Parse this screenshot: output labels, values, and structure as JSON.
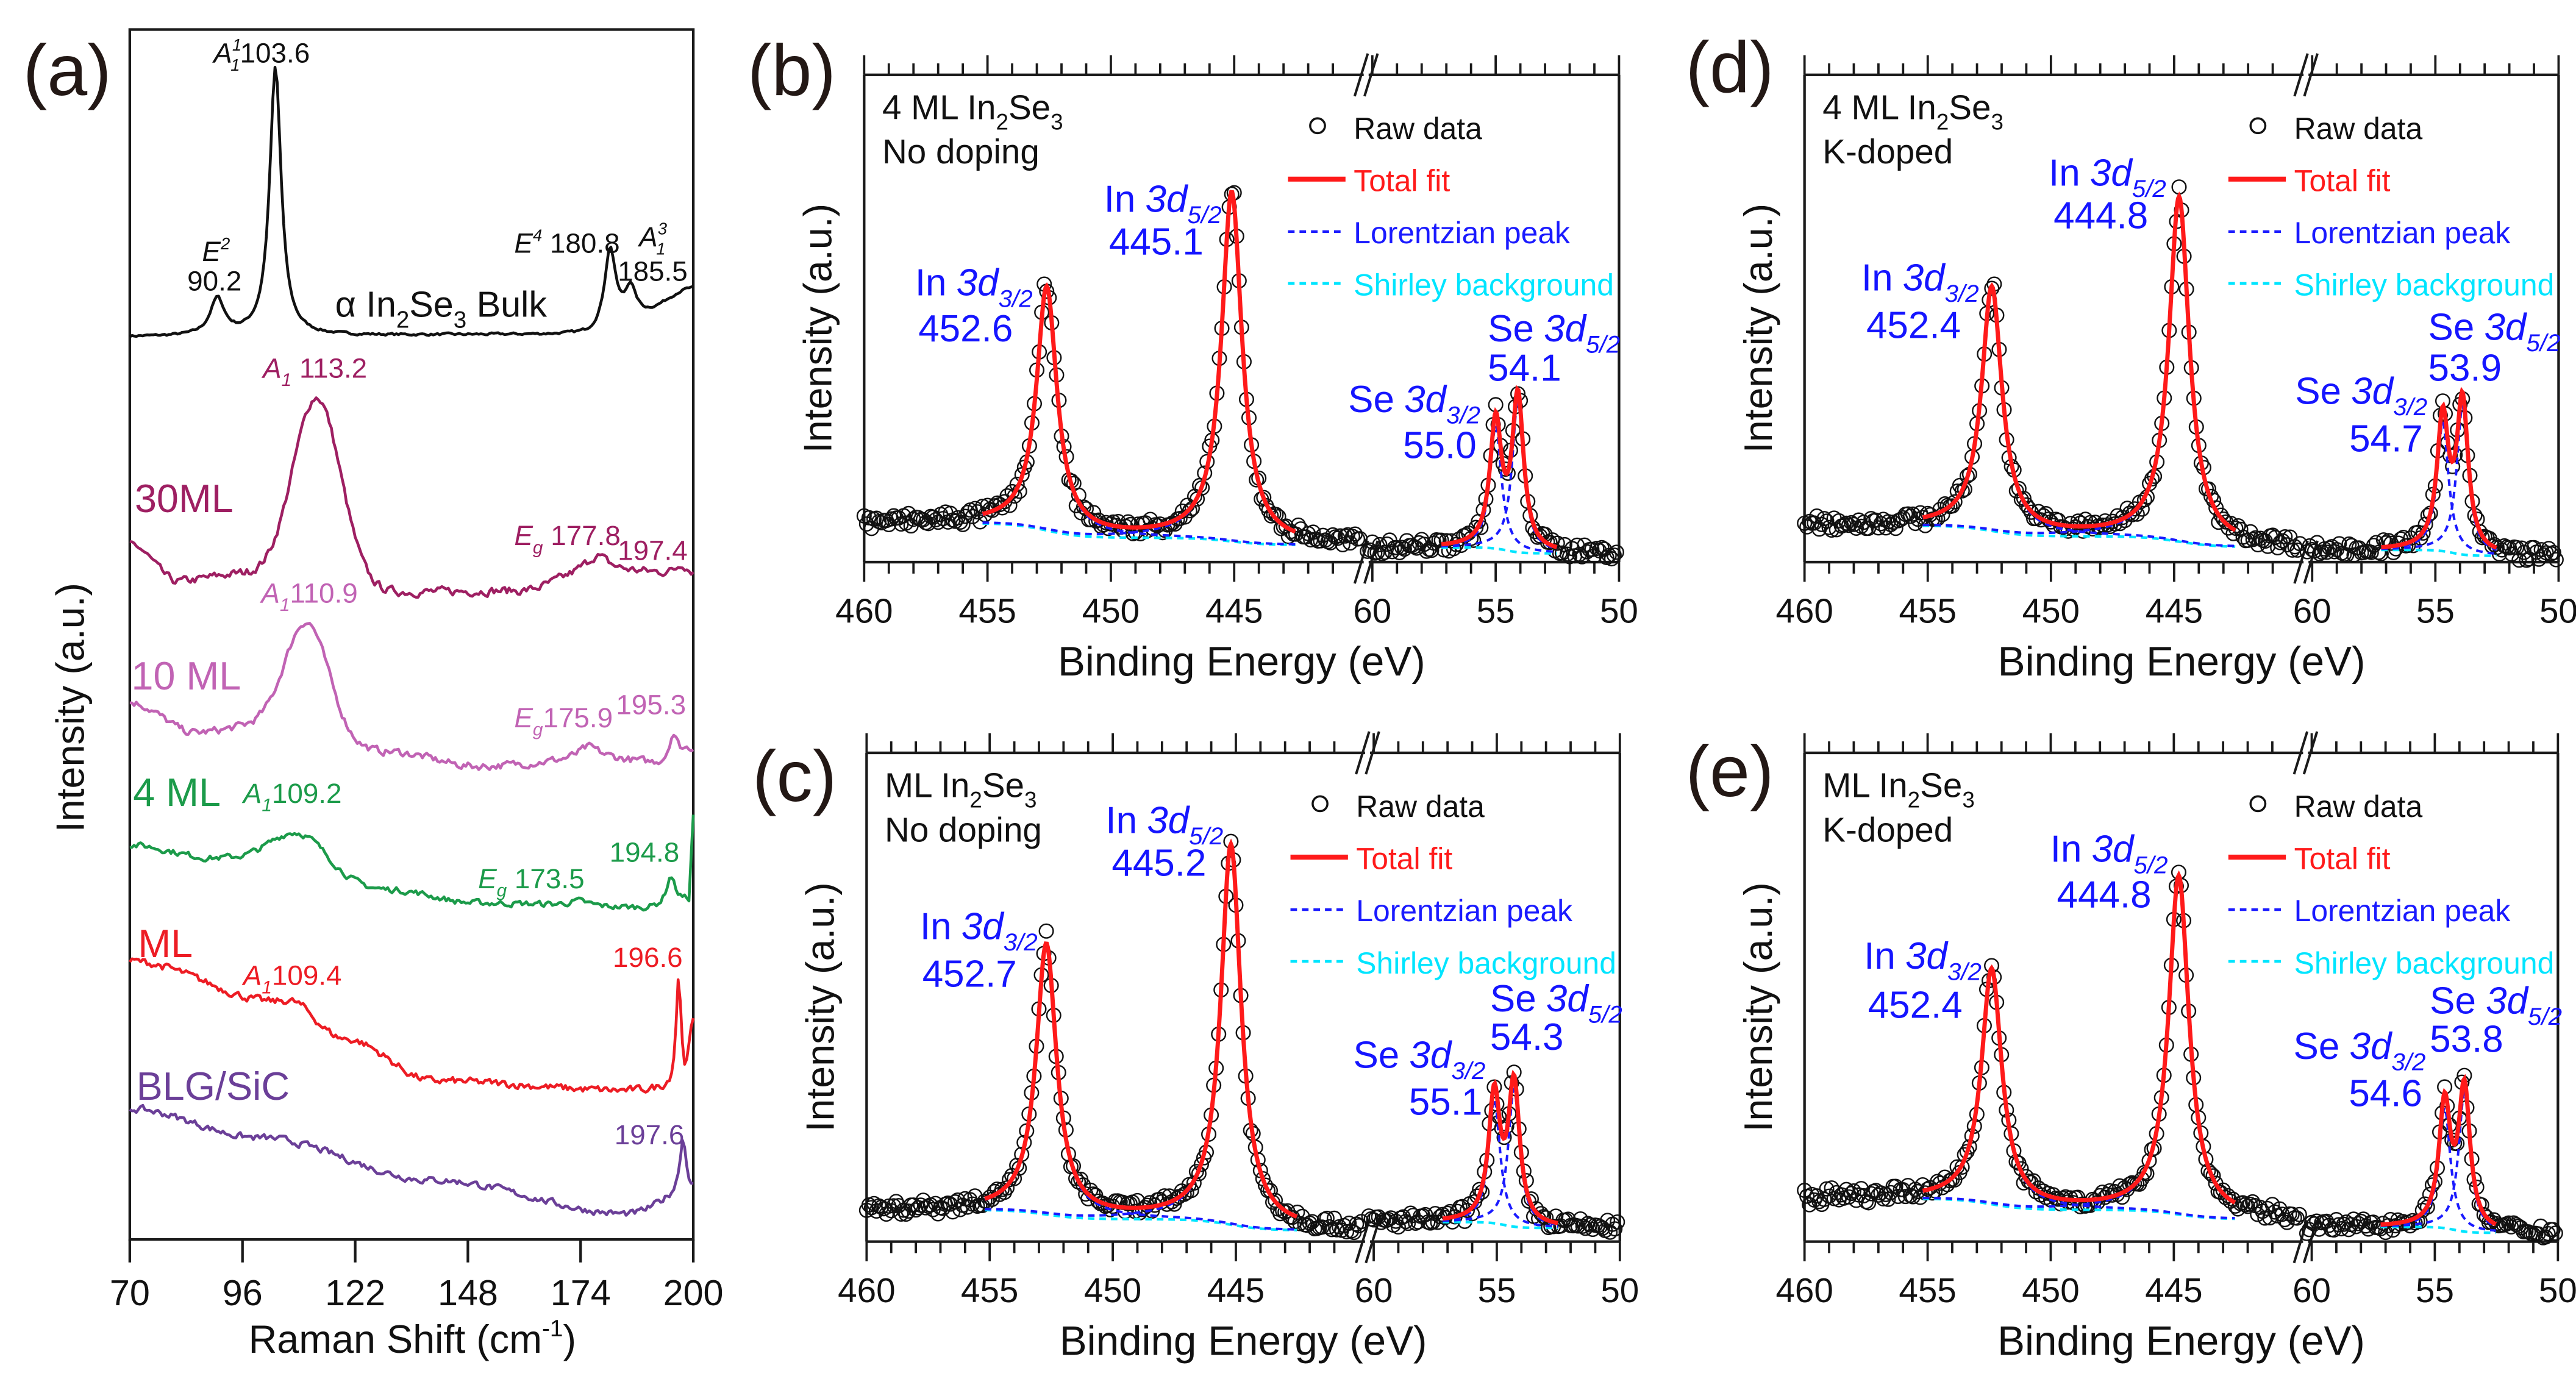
{
  "colors": {
    "bulk": "#111111",
    "ml30": "#9e1f62",
    "ml10": "#c163b4",
    "ml4": "#1c9b4a",
    "ml": "#ed1c24",
    "blg": "#6b3f98",
    "raw": "#111111",
    "fit": "#ff1a1a",
    "lorentz": "#1a1aff",
    "shirley": "#00e5ff",
    "peak_label": "#1515ff",
    "axis": "#1a1a1a"
  },
  "chart_data": [
    {
      "type": "line",
      "panel": "(a)",
      "xlabel": [
        {
          "t": "Raman Shift (cm"
        },
        {
          "t": "-1",
          "s": "sup"
        },
        {
          "t": ")"
        }
      ],
      "ylabel": "Intensity (a.u.)",
      "xlim": [
        70,
        200
      ],
      "xticks": [
        70,
        96,
        122,
        148,
        174,
        200
      ],
      "ylim": [
        0,
        100
      ],
      "grid": false,
      "series": [
        {
          "name": "α In2Se3 Bulk",
          "color_key": "bulk",
          "label": [
            {
              "t": "α In"
            },
            {
              "t": "2",
              "s": "sub"
            },
            {
              "t": "Se"
            },
            {
              "t": "3",
              "s": "sub"
            },
            {
              "t": " Bulk"
            }
          ],
          "baseline": [
            [
              70,
              74.6
            ],
            [
              175,
              74.8
            ],
            [
              188,
              76.6
            ],
            [
              200,
              78.6
            ]
          ],
          "peaks": [
            {
              "pos": 90.2,
              "amp": 3.0,
              "width": 2.0
            },
            {
              "pos": 103.6,
              "amp": 22.2,
              "width": 1.6
            },
            {
              "pos": 180.8,
              "amp": 6.4,
              "width": 1.5
            },
            {
              "pos": 185.5,
              "amp": 2.2,
              "width": 1.3
            }
          ],
          "noise": 0.15,
          "annotations": [
            [
              {
                "t": "A",
                "s": "it"
              },
              {
                "t": "1",
                "s": "sup-it"
              },
              {
                "t": "1",
                "s": "sub-stack"
              },
              {
                "t": "103.6"
              }
            ],
            [
              {
                "t": "E",
                "s": "it"
              },
              {
                "t": "2",
                "s": "sup-it"
              }
            ],
            [
              {
                "t": "90.2"
              }
            ],
            [
              {
                "t": "E",
                "s": "it"
              },
              {
                "t": "4",
                "s": "sup-it"
              },
              {
                "t": " 180.8"
              }
            ],
            [
              {
                "t": "A",
                "s": "it"
              },
              {
                "t": "3",
                "s": "sup-it"
              },
              {
                "t": "1",
                "s": "sub-stack"
              }
            ],
            [
              {
                "t": "185.5"
              }
            ]
          ]
        },
        {
          "name": "30ML",
          "color_key": "ml30",
          "label": [
            {
              "t": "30ML"
            }
          ],
          "baseline": [
            [
              70,
              57.5
            ],
            [
              81,
              54.4
            ],
            [
              95,
              55.0
            ],
            [
              130,
              53.5
            ],
            [
              160,
              53.6
            ],
            [
              178,
              55.3
            ],
            [
              200,
              55.0
            ]
          ],
          "peaks": [
            {
              "pos": 113.2,
              "amp": 15.4,
              "width": 5.5,
              "shape": "gauss"
            },
            {
              "pos": 177.8,
              "amp": 1.2,
              "width": 3.0
            },
            {
              "pos": 197.4,
              "amp": 0.8,
              "width": 1.5
            }
          ],
          "noise": 0.55,
          "annotations": [
            [
              {
                "t": "A",
                "s": "it"
              },
              {
                "t": "1",
                "s": "sub-it"
              },
              {
                "t": " 113.2"
              }
            ],
            [
              {
                "t": "E",
                "s": "it"
              },
              {
                "t": "g",
                "s": "sub-it"
              },
              {
                "t": " 177.8"
              }
            ],
            [
              {
                "t": "197.4"
              }
            ]
          ]
        },
        {
          "name": "10 ML",
          "color_key": "ml10",
          "label": [
            {
              "t": "10 ML"
            }
          ],
          "baseline": [
            [
              70,
              44.4
            ],
            [
              85,
              41.9
            ],
            [
              100,
              42.5
            ],
            [
              130,
              40.3
            ],
            [
              150,
              39.1
            ],
            [
              180,
              39.7
            ],
            [
              193,
              39.3
            ],
            [
              200,
              40.5
            ]
          ],
          "peaks": [
            {
              "pos": 110.9,
              "amp": 9.2,
              "width": 5.0,
              "shape": "gauss"
            },
            {
              "pos": 175.9,
              "amp": 1.0,
              "width": 3.0
            },
            {
              "pos": 195.3,
              "amp": 2.2,
              "width": 1.2
            }
          ],
          "noise": 0.5,
          "annotations": [
            [
              {
                "t": "A",
                "s": "it"
              },
              {
                "t": "1",
                "s": "sub-it"
              },
              {
                "t": "110.9"
              }
            ],
            [
              {
                "t": "E",
                "s": "it"
              },
              {
                "t": "g",
                "s": "sub-it"
              },
              {
                "t": "175.9"
              }
            ],
            [
              {
                "t": "195.3"
              }
            ]
          ]
        },
        {
          "name": "4 ML",
          "color_key": "ml4",
          "label": [
            {
              "t": "4 ML"
            }
          ],
          "baseline": [
            [
              70,
              32.6
            ],
            [
              90,
              31.5
            ],
            [
              130,
              28.9
            ],
            [
              150,
              27.8
            ],
            [
              190,
              27.4
            ],
            [
              199,
              28.0
            ],
            [
              200,
              35.0
            ]
          ],
          "peaks": [
            {
              "pos": 109.2,
              "amp": 3.3,
              "width": 6.5,
              "shape": "gauss"
            },
            {
              "pos": 173.5,
              "amp": 0.4,
              "width": 3.0
            },
            {
              "pos": 194.8,
              "amp": 2.3,
              "width": 1.2
            }
          ],
          "noise": 0.4,
          "annotations": [
            [
              {
                "t": "A",
                "s": "it"
              },
              {
                "t": "1",
                "s": "sub-it"
              },
              {
                "t": "109.2"
              }
            ],
            [
              {
                "t": "E",
                "s": "it"
              },
              {
                "t": "g",
                "s": "sub-it"
              },
              {
                "t": " 173.5"
              }
            ],
            [
              {
                "t": "194.8"
              }
            ]
          ]
        },
        {
          "name": "ML",
          "color_key": "ml",
          "label": [
            {
              "t": "ML"
            }
          ],
          "baseline": [
            [
              70,
              23.0
            ],
            [
              105,
              19.5
            ],
            [
              120,
              16.5
            ],
            [
              140,
              13.1
            ],
            [
              185,
              12.3
            ],
            [
              195,
              12.5
            ],
            [
              198,
              13.0
            ],
            [
              200,
              17.6
            ]
          ],
          "peaks": [
            {
              "pos": 109.4,
              "amp": 0.5,
              "width": 4.0
            },
            {
              "pos": 196.6,
              "amp": 9.0,
              "width": 0.7
            }
          ],
          "noise": 0.5,
          "annotations": [
            [
              {
                "t": "A",
                "s": "it"
              },
              {
                "t": "1",
                "s": "sub-it"
              },
              {
                "t": "109.4"
              }
            ],
            [
              {
                "t": "196.6"
              }
            ]
          ]
        },
        {
          "name": "BLG/SiC",
          "color_key": "blg",
          "label": [
            {
              "t": "BLG/SiC"
            }
          ],
          "baseline": [
            [
              70,
              10.8
            ],
            [
              100,
              8.4
            ],
            [
              140,
              4.9
            ],
            [
              185,
              2.1
            ],
            [
              200,
              4.0
            ]
          ],
          "peaks": [
            {
              "pos": 197.6,
              "amp": 4.5,
              "width": 0.9
            }
          ],
          "noise": 0.45,
          "annotations": [
            [
              {
                "t": "197.6"
              }
            ]
          ]
        }
      ]
    },
    {
      "type": "scatter",
      "panel": "(b)",
      "sample": [
        {
          "t": "4 ML In"
        },
        {
          "t": "2",
          "s": "sub"
        },
        {
          "t": "Se"
        },
        {
          "t": "3",
          "s": "sub"
        }
      ],
      "condition": "No doping",
      "xlabel": "Binding Energy (eV)",
      "ylabel": "Intensity (a.u.)",
      "x_segments": [
        [
          460,
          439.7
        ],
        [
          60.1,
          50
        ]
      ],
      "xticks": [
        460,
        455,
        450,
        445,
        60,
        55,
        50
      ],
      "legend": [
        "Raw data",
        "Total fit",
        "Lorentzian peak",
        "Shirley background"
      ],
      "background": {
        "high": 0.08,
        "mid": 0.05,
        "low": 0.035,
        "se": 0.018
      },
      "peaks": [
        {
          "element": "In",
          "orbital": "3d",
          "j": "3/2",
          "energy": "452.6",
          "position": 452.6,
          "height": 0.566
        },
        {
          "element": "In",
          "orbital": "3d",
          "j": "5/2",
          "energy": "445.1",
          "position": 445.1,
          "height": 0.76
        },
        {
          "element": "Se",
          "orbital": "3d",
          "j": "3/2",
          "energy": "55.0",
          "position": 55.0,
          "height": 0.307
        },
        {
          "element": "Se",
          "orbital": "3d",
          "j": "5/2",
          "energy": "54.1",
          "position": 54.1,
          "height": 0.355
        }
      ]
    },
    {
      "type": "scatter",
      "panel": "(c)",
      "sample": [
        {
          "t": "ML In"
        },
        {
          "t": "2",
          "s": "sub"
        },
        {
          "t": "Se"
        },
        {
          "t": "3",
          "s": "sub"
        }
      ],
      "condition": "No doping",
      "xlabel": "Binding Energy (eV)",
      "ylabel": "Intensity (a.u.)",
      "x_segments": [
        [
          460,
          439.7
        ],
        [
          60.1,
          50
        ]
      ],
      "xticks": [
        460,
        455,
        450,
        445,
        60,
        55,
        50
      ],
      "legend": [
        "Raw data",
        "Total fit",
        "Lorentzian peak",
        "Shirley background"
      ],
      "background": {
        "high": 0.065,
        "mid": 0.046,
        "low": 0.023,
        "se": 0.028
      },
      "peaks": [
        {
          "element": "In",
          "orbital": "3d",
          "j": "3/2",
          "energy": "452.7",
          "position": 452.7,
          "height": 0.61
        },
        {
          "element": "In",
          "orbital": "3d",
          "j": "5/2",
          "energy": "445.2",
          "position": 445.2,
          "height": 0.813
        },
        {
          "element": "Se",
          "orbital": "3d",
          "j": "3/2",
          "energy": "55.1",
          "position": 55.1,
          "height": 0.323
        },
        {
          "element": "Se",
          "orbital": "3d",
          "j": "5/2",
          "energy": "54.3",
          "position": 54.3,
          "height": 0.342
        }
      ]
    },
    {
      "type": "scatter",
      "panel": "(d)",
      "sample": [
        {
          "t": "4 ML In"
        },
        {
          "t": "2",
          "s": "sub"
        },
        {
          "t": "Se"
        },
        {
          "t": "3",
          "s": "sub"
        }
      ],
      "condition": "K-doped",
      "xlabel": "Binding Energy (eV)",
      "ylabel": "Intensity (a.u.)",
      "x_segments": [
        [
          460,
          439.7
        ],
        [
          60.1,
          50
        ]
      ],
      "xticks": [
        460,
        455,
        450,
        445,
        60,
        55,
        50
      ],
      "legend": [
        "Raw data",
        "Total fit",
        "Lorentzian peak",
        "Shirley background"
      ],
      "background": {
        "high": 0.075,
        "mid": 0.053,
        "low": 0.031,
        "se": 0.013
      },
      "peaks": [
        {
          "element": "In",
          "orbital": "3d",
          "j": "3/2",
          "energy": "452.4",
          "position": 452.4,
          "height": 0.566
        },
        {
          "element": "In",
          "orbital": "3d",
          "j": "5/2",
          "energy": "444.8",
          "position": 444.8,
          "height": 0.75
        },
        {
          "element": "Se",
          "orbital": "3d",
          "j": "3/2",
          "energy": "54.7",
          "position": 54.7,
          "height": 0.32
        },
        {
          "element": "Se",
          "orbital": "3d",
          "j": "5/2",
          "energy": "53.9",
          "position": 53.9,
          "height": 0.35
        }
      ]
    },
    {
      "type": "scatter",
      "panel": "(e)",
      "sample": [
        {
          "t": "ML In"
        },
        {
          "t": "2",
          "s": "sub"
        },
        {
          "t": "Se"
        },
        {
          "t": "3",
          "s": "sub"
        }
      ],
      "condition": "K-doped",
      "xlabel": "Binding Energy (eV)",
      "ylabel": "Intensity (a.u.)",
      "x_segments": [
        [
          460,
          439.7
        ],
        [
          60.1,
          50
        ]
      ],
      "xticks": [
        460,
        455,
        450,
        445,
        60,
        55,
        50
      ],
      "legend": [
        "Raw data",
        "Total fit",
        "Lorentzian peak",
        "Shirley background"
      ],
      "background": {
        "high": 0.088,
        "mid": 0.065,
        "low": 0.046,
        "se": 0.018
      },
      "peaks": [
        {
          "element": "In",
          "orbital": "3d",
          "j": "3/2",
          "energy": "452.4",
          "position": 452.4,
          "height": 0.559
        },
        {
          "element": "In",
          "orbital": "3d",
          "j": "5/2",
          "energy": "444.8",
          "position": 444.8,
          "height": 0.749
        },
        {
          "element": "Se",
          "orbital": "3d",
          "j": "3/2",
          "energy": "54.6",
          "position": 54.6,
          "height": 0.305
        },
        {
          "element": "Se",
          "orbital": "3d",
          "j": "5/2",
          "energy": "53.8",
          "position": 53.8,
          "height": 0.333
        }
      ]
    }
  ]
}
